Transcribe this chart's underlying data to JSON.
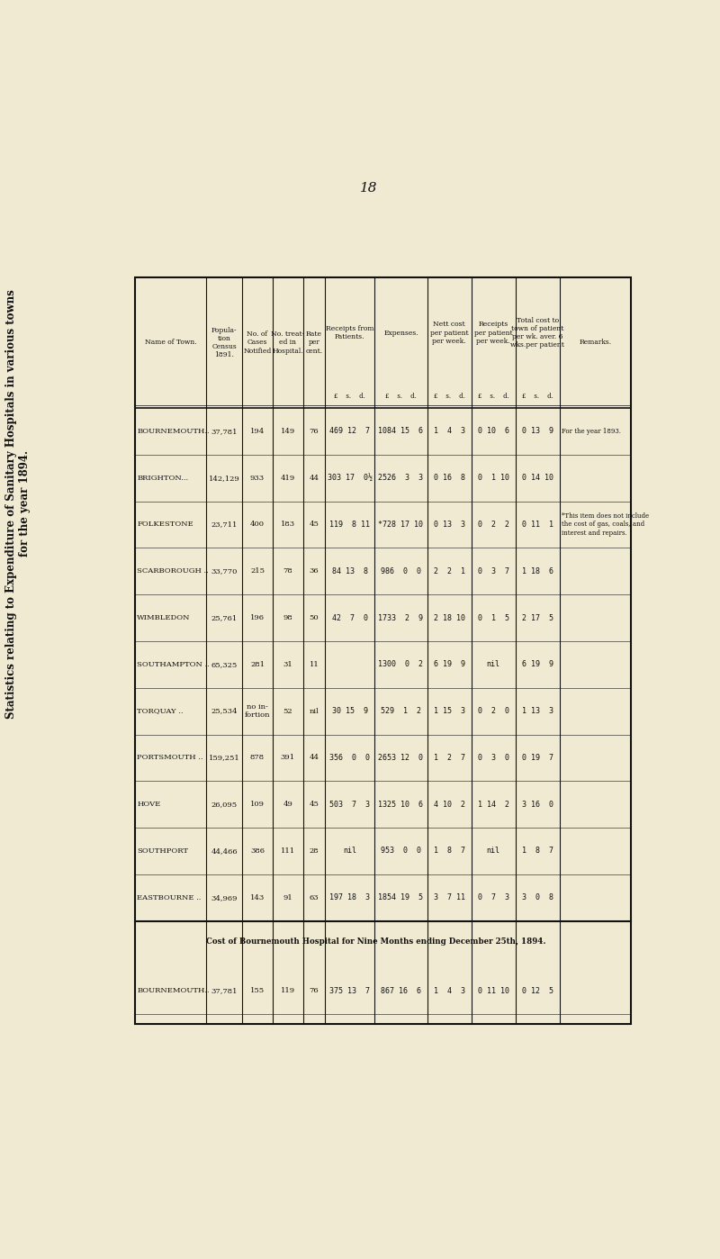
{
  "title": "Statistics relating to Expenditure of Sanitary Hospitals in various towns",
  "subtitle": "for the year 1894.",
  "page_number": "18",
  "bg_color": "#f0ead2",
  "text_color": "#111111",
  "towns": [
    "BOURNEMOUTH..",
    "BRIGHTON...",
    "FOLKESTONE",
    "SCARBOROUGH ..",
    "WIMBLEDON",
    "SOUTHAMPTON ..",
    "TORQUAY ..",
    "PORTSMOUTH ..",
    "HOVE",
    "SOUTHPORT",
    "EASTBOURNE .."
  ],
  "population": [
    "37,781",
    "142,129",
    "23,711",
    "33,770",
    "25,761",
    "65,325",
    "25,534",
    "159,251",
    "26,095",
    "44,466",
    "34,969"
  ],
  "cases_notified": [
    "194",
    "933",
    "400",
    "215",
    "196",
    "281",
    "no in-\nfortion",
    "878",
    "109",
    "386",
    "143"
  ],
  "treated": [
    "149",
    "419",
    "183",
    "78",
    "98",
    "31",
    "52",
    "391",
    "49",
    "111",
    "91"
  ],
  "rate_per_cent": [
    "76",
    "44",
    "45",
    "36",
    "50",
    "11",
    "nil",
    "44",
    "45",
    "28",
    "63"
  ],
  "receipts_from_patients": [
    "469 12  7",
    "303 17  0½",
    "119  8 11",
    "84 13  8",
    "42  7  0",
    "",
    "30 15  9",
    "356  0  0",
    "503  7  3",
    "nil",
    "197 18  3"
  ],
  "expenses": [
    "1084 15  6",
    "2526  3  3",
    "*728 17 10",
    "986  0  0",
    "1733  2  9",
    "1300  0  2",
    "529  1  2",
    "2653 12  0",
    "1325 10  6",
    "953  0  0",
    "1854 19  5"
  ],
  "nett_cost_ppw": [
    "1  4  3",
    "0 16  8",
    "0 13  3",
    "2  2  1",
    "2 18 10",
    "6 19  9",
    "1 15  3",
    "1  2  7",
    "4 10  2",
    "1  8  7",
    "3  7 11"
  ],
  "receipts_ppw": [
    "0 10  6",
    "0  1 10",
    "0  2  2",
    "0  3  7",
    "0  1  5",
    "nil",
    "0  2  0",
    "0  3  0",
    "1 14  2",
    "nil",
    "0  7  3"
  ],
  "total_cost_ppw": [
    "0 13  9",
    "0 14 10",
    "0 11  1",
    "1 18  6",
    "2 17  5",
    "6 19  9",
    "1 13  3",
    "0 19  7",
    "3 16  0",
    "1  8  7",
    "3  0  8"
  ],
  "remarks": [
    "For the year 1893.",
    "",
    "*This item does not include\nthe cost of gas, coals, and\ninterest and repairs.",
    "",
    "",
    "",
    "",
    "",
    "",
    "",
    ""
  ],
  "bottom_section_title": "Cost of Bournemouth Hospital for Nine Months ending December 25th, 1894.",
  "bottom_row": {
    "town": "BOURNEMOUTH..",
    "population": "37,781",
    "cases_notified": "155",
    "treated": "119",
    "rate_per_cent": "76",
    "receipts_from_patients": "375 13  7",
    "expenses": "867 16  6",
    "nett_cost_ppw": "1  4  3",
    "receipts_ppw": "0 11 10",
    "total_cost_ppw": "0 12  5"
  }
}
